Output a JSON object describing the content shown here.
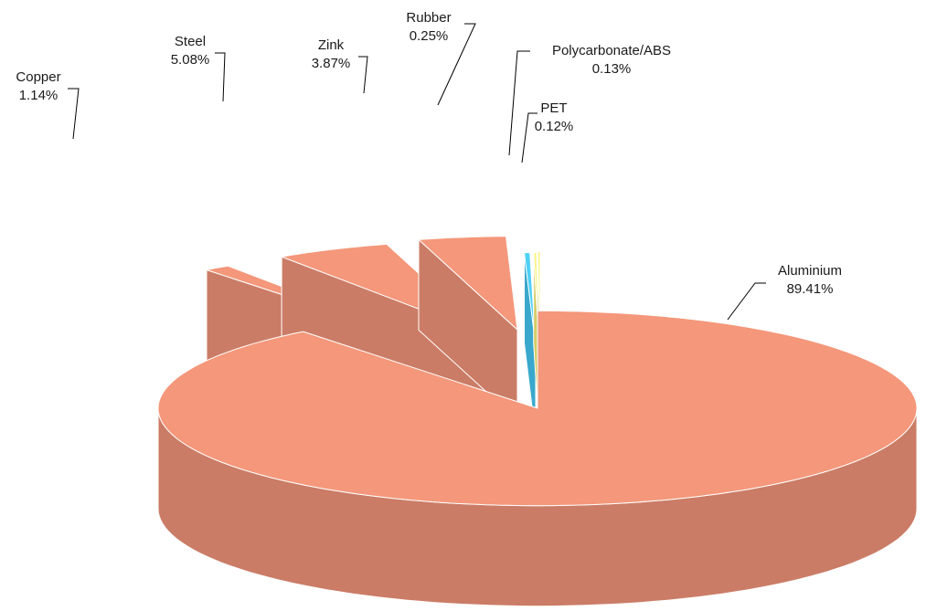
{
  "chart_data": {
    "type": "pie",
    "title": "",
    "slices": [
      {
        "label": "Aluminium",
        "value": 89.41,
        "display": "89.41%",
        "top_color": "#f4977a",
        "side_color": "#cb7c66"
      },
      {
        "label": "Copper",
        "value": 1.14,
        "display": "1.14%",
        "top_color": "#f4977a",
        "side_color": "#cb7c66"
      },
      {
        "label": "Steel",
        "value": 5.08,
        "display": "5.08%",
        "top_color": "#f4977a",
        "side_color": "#cb7c66"
      },
      {
        "label": "Zink",
        "value": 3.87,
        "display": "3.87%",
        "top_color": "#f4977a",
        "side_color": "#cb7c66"
      },
      {
        "label": "Rubber",
        "value": 0.25,
        "display": "0.25%",
        "top_color": "#4fd0f5",
        "side_color": "#3aa8cc"
      },
      {
        "label": "Polycarbonate/ABS",
        "value": 0.13,
        "display": "0.13%",
        "top_color": "#fdf58a",
        "side_color": "#d6cc66"
      },
      {
        "label": "PET",
        "value": 0.12,
        "display": "0.12%",
        "top_color": "#fdf58a",
        "side_color": "#d6cc66"
      }
    ],
    "exploded": true,
    "style": "3d"
  }
}
